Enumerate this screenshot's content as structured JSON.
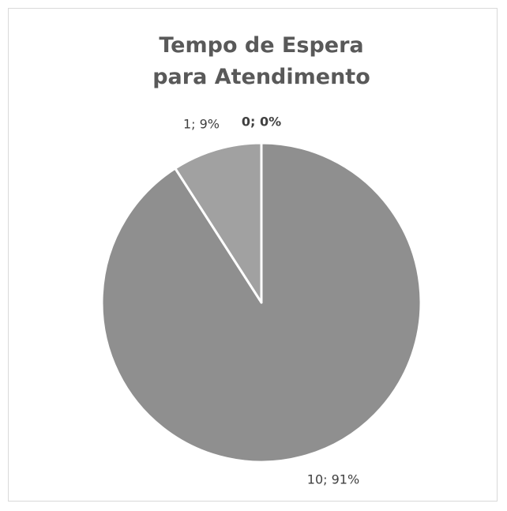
{
  "chart_data": {
    "type": "pie",
    "title": "Tempo de Espera para Atendimento",
    "values": [
      10,
      1,
      0
    ],
    "value_labels": [
      "10; 91%",
      "1; 9%",
      "0; 0%"
    ],
    "colors": [
      "#8f8f8f",
      "#a1a1a1",
      "#b5b5b5"
    ]
  }
}
